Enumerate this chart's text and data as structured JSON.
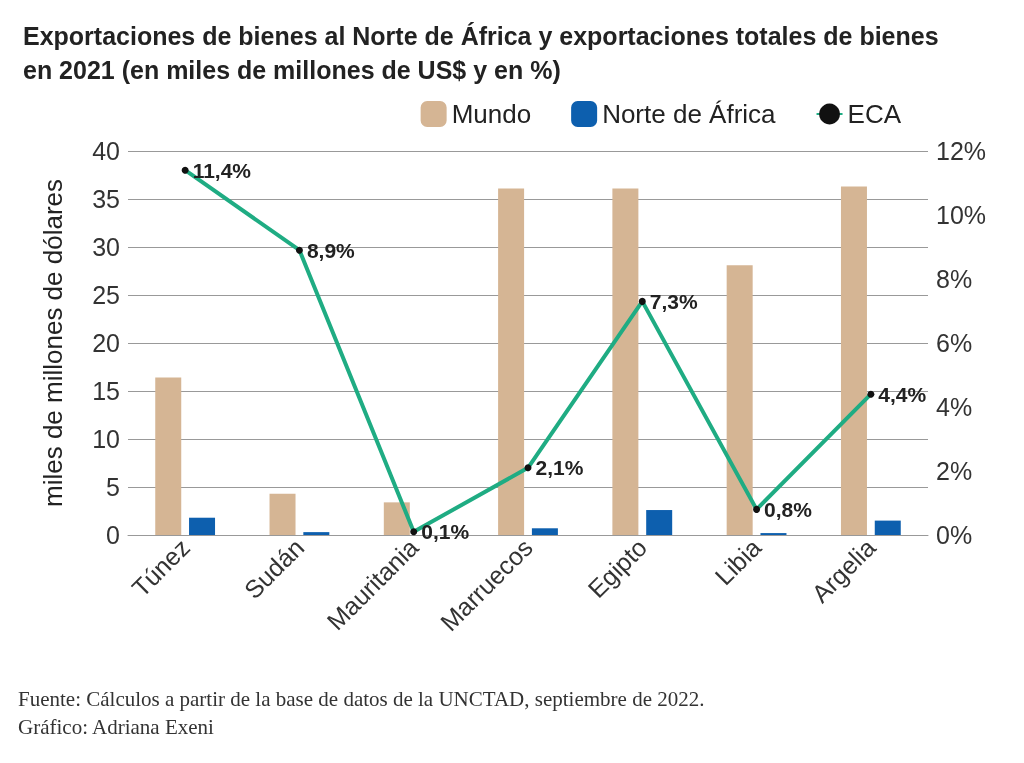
{
  "chart_data": {
    "type": "bar",
    "title": "Exportaciones de bienes al Norte de África y exportaciones totales de bienes en 2021 (en miles de millones de US$ y en %)",
    "ylabel": "miles de millones de dólares",
    "categories": [
      "Túnez",
      "Sudán",
      "Mauritania",
      "Marruecos",
      "Egipto",
      "Libia",
      "Argelia"
    ],
    "series": [
      {
        "name": "Mundo",
        "color": "#d5b594",
        "values": [
          16.4,
          4.3,
          3.4,
          36.1,
          36.1,
          28.1,
          36.3
        ]
      },
      {
        "name": "Norte de África",
        "color": "#0d5fae",
        "values": [
          1.8,
          0.3,
          0,
          0.7,
          2.6,
          0.2,
          1.5
        ]
      },
      {
        "name": "ECA",
        "type": "line",
        "axis": "y2",
        "color": "#1fac83",
        "values": [
          11.4,
          8.9,
          0.1,
          2.1,
          7.3,
          0.8,
          4.4
        ],
        "value_labels": [
          "11,4%",
          "8,9%",
          "0,1%",
          "2,1%",
          "7,3%",
          "0,8%",
          "4,4%"
        ]
      }
    ],
    "ylim": [
      0,
      40
    ],
    "yticks": [
      0,
      5,
      10,
      15,
      20,
      25,
      30,
      35,
      40
    ],
    "y2lim": [
      0,
      12
    ],
    "y2ticks": [
      {
        "value": 0,
        "label": "0%"
      },
      {
        "value": 2,
        "label": "2%"
      },
      {
        "value": 4,
        "label": "4%"
      },
      {
        "value": 6,
        "label": "6%"
      },
      {
        "value": 8,
        "label": "8%"
      },
      {
        "value": 10,
        "label": "10%"
      },
      {
        "value": 12,
        "label": "12%"
      }
    ],
    "grid": "y",
    "legend": "top right",
    "marker": "circle",
    "annotations": [
      "Fuente: Cálculos a partir de la base de datos de la UNCTAD, septiembre de 2022.",
      "Gráfico: Adriana Exeni"
    ]
  }
}
